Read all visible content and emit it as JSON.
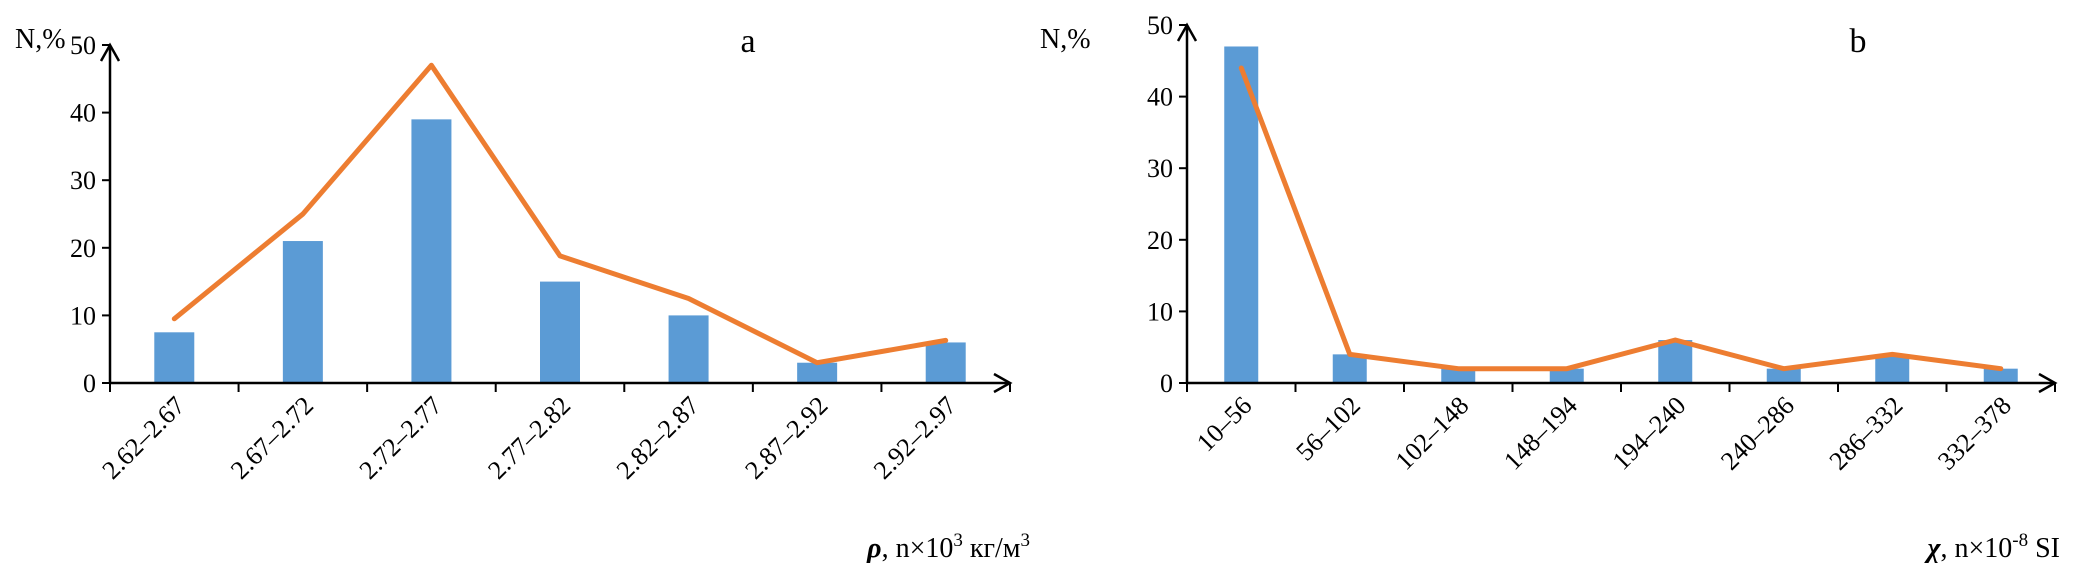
{
  "chart_data": [
    {
      "type": "bar",
      "panel": "a",
      "categories": [
        "2.62–2.67",
        "2.67–2.72",
        "2.72–2.77",
        "2.77–2.82",
        "2.82–2.87",
        "2.87–2.92",
        "2.92–2.97"
      ],
      "series": [
        {
          "type": "bar",
          "values": [
            7.5,
            21,
            39,
            15,
            10,
            3,
            6
          ]
        },
        {
          "type": "line",
          "values": [
            9.5,
            25,
            47,
            18.8,
            12.5,
            3,
            6.3
          ]
        }
      ],
      "ylabel": "N,%",
      "xlabel": {
        "symbol": "ρ",
        "rest": ", n×10",
        "sup": "3",
        "unit": " кг/м",
        "unit_sup": "3"
      },
      "ylim": [
        0,
        50
      ],
      "yticks": [
        0,
        10,
        20,
        30,
        40,
        50
      ],
      "grid": false,
      "legend": "none"
    },
    {
      "type": "bar",
      "panel": "b",
      "categories": [
        "10–56",
        "56–102",
        "102–148",
        "148–194",
        "194–240",
        "240–286",
        "286–332",
        "332–378"
      ],
      "series": [
        {
          "type": "bar",
          "values": [
            47,
            4,
            2,
            2,
            6,
            2,
            4,
            2
          ]
        },
        {
          "type": "line",
          "values": [
            44,
            4,
            2,
            2,
            6,
            2,
            4,
            2
          ]
        }
      ],
      "ylabel": "N,%",
      "xlabel": {
        "symbol": "χ",
        "rest": ", n×10",
        "sup": "-8",
        "unit": " SI",
        "unit_sup": ""
      },
      "ylim": [
        0,
        50
      ],
      "yticks": [
        0,
        10,
        20,
        30,
        40,
        50
      ],
      "grid": false,
      "legend": "none"
    }
  ],
  "colors": {
    "bar": "#5b9bd5",
    "line": "#ed7d31",
    "axis": "#000000"
  }
}
